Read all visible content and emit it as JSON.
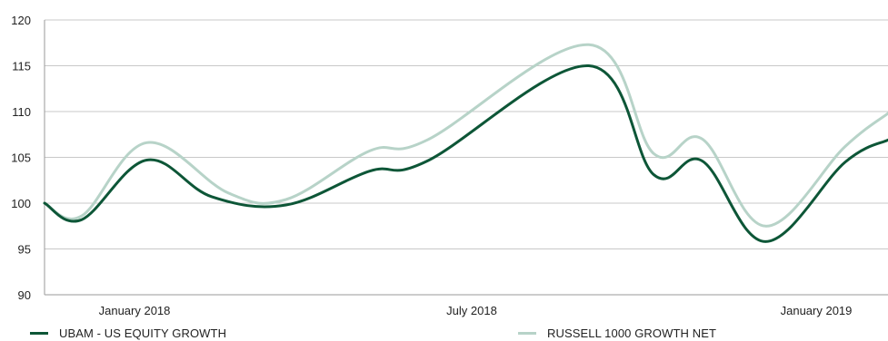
{
  "chart_data": {
    "type": "line",
    "title": "",
    "xlabel": "",
    "ylabel": "",
    "ylim": [
      90,
      120
    ],
    "yticks": [
      "90",
      "95",
      "100",
      "105",
      "110",
      "115",
      "120"
    ],
    "xticks": [
      "January 2018",
      "July 2018",
      "January 2019"
    ],
    "grid": true,
    "legend_position": "bottom",
    "series": [
      {
        "name": "UBAM - US EQUITY GROWTH",
        "color": "#0d5637",
        "points": [
          [
            "2017-12-01",
            100.0
          ],
          [
            "2017-12-21",
            98.2
          ],
          [
            "2018-01-25",
            104.7
          ],
          [
            "2018-03-01",
            100.7
          ],
          [
            "2018-04-10",
            99.8
          ],
          [
            "2018-05-25",
            103.5
          ],
          [
            "2018-06-25",
            104.6
          ],
          [
            "2018-09-20",
            115.0
          ],
          [
            "2018-10-25",
            103.1
          ],
          [
            "2018-11-20",
            104.6
          ],
          [
            "2018-12-24",
            95.8
          ],
          [
            "2019-02-05",
            104.5
          ],
          [
            "2019-02-28",
            106.9
          ]
        ]
      },
      {
        "name": "RUSSELL 1000 GROWTH NET",
        "color": "#b7d3c8",
        "points": [
          [
            "2017-12-01",
            100.0
          ],
          [
            "2017-12-21",
            98.6
          ],
          [
            "2018-01-25",
            106.6
          ],
          [
            "2018-03-10",
            101.1
          ],
          [
            "2018-04-10",
            100.4
          ],
          [
            "2018-05-25",
            105.7
          ],
          [
            "2018-06-25",
            106.9
          ],
          [
            "2018-09-20",
            117.3
          ],
          [
            "2018-10-25",
            105.4
          ],
          [
            "2018-11-20",
            107.0
          ],
          [
            "2018-12-24",
            97.5
          ],
          [
            "2019-02-05",
            106.2
          ],
          [
            "2019-02-28",
            109.8
          ]
        ]
      }
    ]
  }
}
